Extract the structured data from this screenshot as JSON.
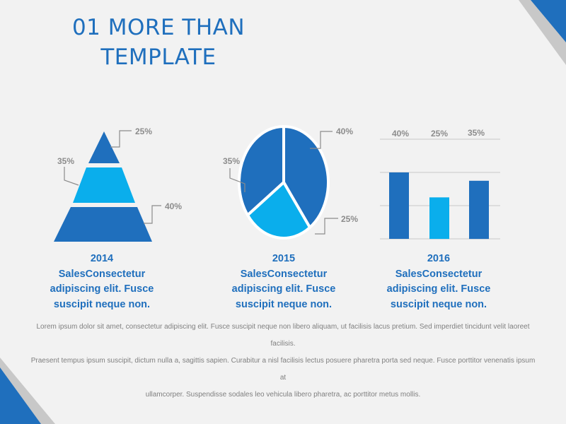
{
  "theme": {
    "accent": "#1f6fbd",
    "light": "#0aaeec",
    "muted": "#8c8c8c",
    "bg": "#f2f2f2"
  },
  "title": {
    "line1": "01 MORE THAN",
    "line2": "TEMPLATE"
  },
  "chart_data": [
    {
      "type": "pyramid",
      "segments": [
        {
          "label": "25%",
          "value": 25
        },
        {
          "label": "35%",
          "value": 35
        },
        {
          "label": "40%",
          "value": 40
        }
      ]
    },
    {
      "type": "pie",
      "slices": [
        {
          "label": "40%",
          "value": 40
        },
        {
          "label": "25%",
          "value": 25
        },
        {
          "label": "35%",
          "value": 35
        }
      ]
    },
    {
      "type": "bar",
      "categories": [
        "40%",
        "25%",
        "35%"
      ],
      "values": [
        40,
        25,
        35
      ],
      "ylim": [
        0,
        60
      ],
      "grid": true
    }
  ],
  "captions": [
    {
      "year": "2014",
      "line1": "SalesConsectetur",
      "line2": "adipiscing elit. Fusce",
      "line3": "suscipit neque non."
    },
    {
      "year": "2015",
      "line1": "SalesConsectetur",
      "line2": "adipiscing elit. Fusce",
      "line3": "suscipit neque non."
    },
    {
      "year": "2016",
      "line1": "SalesConsectetur",
      "line2": "adipiscing elit. Fusce",
      "line3": "suscipit neque non."
    }
  ],
  "body": {
    "line1": "Lorem ipsum dolor sit amet, consectetur adipiscing elit. Fusce suscipit neque non libero aliquam, ut facilisis lacus pretium. Sed imperdiet tincidunt velit laoreet facilisis.",
    "line2": "Praesent tempus ipsum suscipit, dictum nulla a, sagittis sapien. Curabitur a nisl facilisis lectus posuere pharetra porta sed neque. Fusce porttitor venenatis ipsum at",
    "line3": "ullamcorper. Suspendisse sodales leo vehicula libero pharetra, ac porttitor metus mollis."
  }
}
